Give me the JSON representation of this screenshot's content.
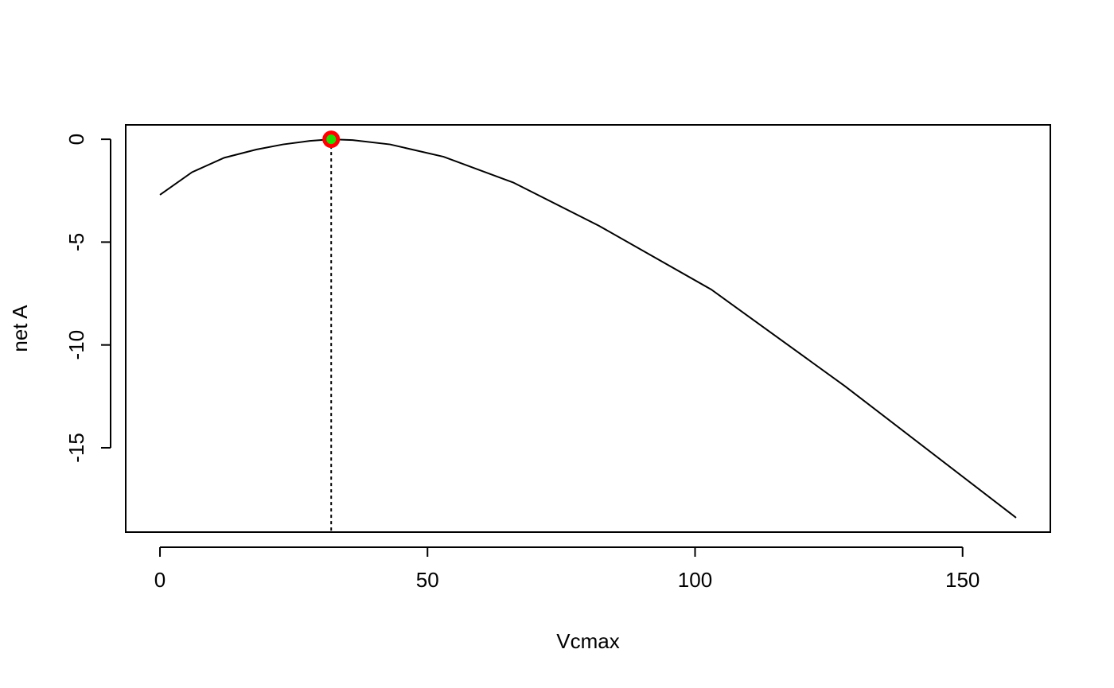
{
  "chart_data": {
    "type": "line",
    "title": "",
    "xlabel": "Vcmax",
    "ylabel": "net A",
    "xlim": [
      -6.4,
      166.4
    ],
    "ylim": [
      -19.1,
      0.7
    ],
    "x_ticks": [
      0,
      50,
      100,
      150
    ],
    "y_ticks": [
      0,
      -5,
      -10,
      -15
    ],
    "x_tick_labels": [
      "0",
      "50",
      "100",
      "150"
    ],
    "y_tick_labels": [
      "0",
      "-5",
      "-10",
      "-15"
    ],
    "grid": false,
    "series": [
      {
        "color": "#000000",
        "x": [
          0,
          6,
          12,
          18,
          23,
          28,
          32,
          36,
          43,
          53,
          66,
          82,
          103,
          128,
          160
        ],
        "y": [
          -2.7,
          -1.6,
          -0.9,
          -0.5,
          -0.25,
          -0.08,
          0.0,
          -0.04,
          -0.25,
          -0.85,
          -2.1,
          -4.2,
          -7.3,
          -12.0,
          -18.4
        ]
      }
    ],
    "optimum": {
      "x": 32,
      "y": 0.0,
      "outer_color": "#ff0000",
      "inner_color": "#22dd00",
      "guide_line_style": "dotted"
    }
  }
}
